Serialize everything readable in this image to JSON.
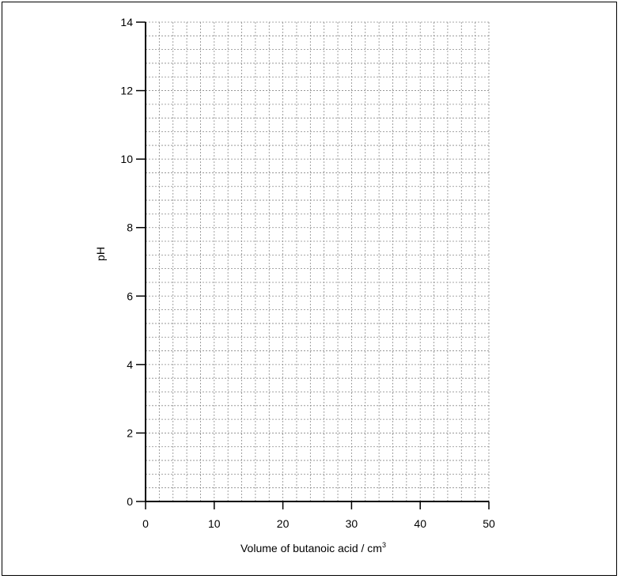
{
  "chart_data": {
    "type": "line",
    "title": "",
    "xlabel": "Volume of butanoic acid / cm",
    "xlabel_superscript": "3",
    "ylabel": "pH",
    "xlim": [
      0,
      50
    ],
    "ylim": [
      0,
      14
    ],
    "x_ticks": [
      0,
      10,
      20,
      30,
      40,
      50
    ],
    "y_ticks": [
      0,
      2,
      4,
      6,
      8,
      10,
      12,
      14
    ],
    "grid": "dashed grey, one minor line per 2 cm3 and per 0.4 pH",
    "series": []
  }
}
